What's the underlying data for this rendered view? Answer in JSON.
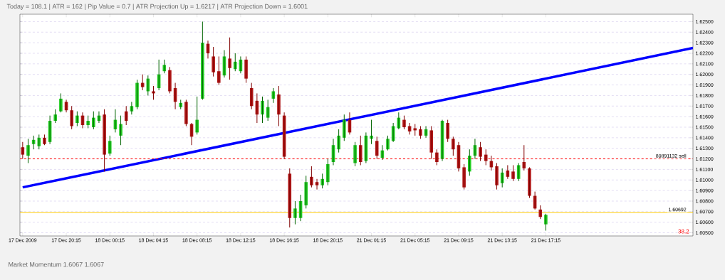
{
  "chart_data": {
    "type": "candlestick",
    "title": "Today = 108.1   |   ATR = 162   |   Pip Value = 0.7   |   ATR Projection Up = 1.6217   |   ATR Projection Down = 1.6001",
    "categories": [
      "17 Dec 2009",
      null,
      null,
      null,
      null,
      null,
      null,
      null,
      "17 Dec 20:15",
      null,
      null,
      null,
      null,
      null,
      null,
      null,
      "18 Dec 00:15",
      null,
      null,
      null,
      null,
      null,
      null,
      null,
      "18 Dec 04:15",
      null,
      null,
      null,
      null,
      null,
      null,
      null,
      "18 Dec 08:15",
      null,
      null,
      null,
      null,
      null,
      null,
      null,
      "18 Dec 12:15",
      null,
      null,
      null,
      null,
      null,
      null,
      null,
      "18 Dec 16:15",
      null,
      null,
      null,
      null,
      null,
      null,
      null,
      "18 Dec 20:15",
      null,
      null,
      null,
      null,
      null,
      null,
      null,
      "21 Dec 01:15",
      null,
      null,
      null,
      null,
      null,
      null,
      null,
      "21 Dec 05:15",
      null,
      null,
      null,
      null,
      null,
      null,
      null,
      "21 Dec 09:15",
      null,
      null,
      null,
      null,
      null,
      null,
      null,
      "21 Dec 13:15",
      null,
      null,
      null,
      null,
      null,
      null,
      null,
      "21 Dec 17:15",
      null,
      null,
      null,
      null,
      null,
      null,
      null,
      null,
      null,
      null,
      null,
      null,
      null,
      null,
      null,
      null,
      null,
      null,
      null,
      null,
      null,
      null,
      null,
      null,
      null,
      null,
      null
    ],
    "ohlc": [
      [
        1.6131,
        1.6136,
        1.612,
        1.6124
      ],
      [
        1.6123,
        1.6139,
        1.6116,
        1.6133
      ],
      [
        1.6134,
        1.6142,
        1.6129,
        1.6138
      ],
      [
        1.6132,
        1.6143,
        1.6129,
        1.614
      ],
      [
        1.614,
        1.6143,
        1.6133,
        1.6134
      ],
      [
        1.6136,
        1.6161,
        1.6134,
        1.6156
      ],
      [
        1.6156,
        1.6167,
        1.6154,
        1.6162
      ],
      [
        1.6165,
        1.6182,
        1.6164,
        1.6177
      ],
      [
        1.6174,
        1.6176,
        1.6164,
        1.6166
      ],
      [
        1.6166,
        1.617,
        1.6148,
        1.6151
      ],
      [
        1.6154,
        1.6165,
        1.6151,
        1.6161
      ],
      [
        1.6161,
        1.6164,
        1.6149,
        1.6152
      ],
      [
        1.6152,
        1.6161,
        1.6149,
        1.6156
      ],
      [
        1.615,
        1.6165,
        1.6148,
        1.6159
      ],
      [
        1.6156,
        1.6165,
        1.6154,
        1.6161
      ],
      [
        1.6162,
        1.6167,
        1.6108,
        1.6124
      ],
      [
        1.6125,
        1.6142,
        1.6123,
        1.6137
      ],
      [
        1.6148,
        1.6167,
        1.6145,
        1.6157
      ],
      [
        1.6142,
        1.6161,
        1.6133,
        1.6153
      ],
      [
        1.6165,
        1.617,
        1.6152,
        1.6156
      ],
      [
        1.6165,
        1.6174,
        1.6162,
        1.617
      ],
      [
        1.6169,
        1.6195,
        1.6167,
        1.6192
      ],
      [
        1.6192,
        1.62,
        1.6185,
        1.6188
      ],
      [
        1.6184,
        1.6199,
        1.618,
        1.6196
      ],
      [
        1.6184,
        1.6189,
        1.6176,
        1.6182
      ],
      [
        1.6187,
        1.6214,
        1.6185,
        1.62
      ],
      [
        1.6203,
        1.6214,
        1.6201,
        1.6209
      ],
      [
        1.6204,
        1.6207,
        1.6182,
        1.6184
      ],
      [
        1.6187,
        1.6192,
        1.6167,
        1.6174
      ],
      [
        1.6169,
        1.6176,
        1.6167,
        1.6173
      ],
      [
        1.6174,
        1.6176,
        1.6151,
        1.6153
      ],
      [
        1.6153,
        1.6154,
        1.6133,
        1.6141
      ],
      [
        1.6145,
        1.6179,
        1.6143,
        1.6157
      ],
      [
        1.6177,
        1.625,
        1.6176,
        1.623
      ],
      [
        1.6229,
        1.6232,
        1.6215,
        1.622
      ],
      [
        1.6217,
        1.6226,
        1.6198,
        1.6202
      ],
      [
        1.6203,
        1.6217,
        1.619,
        1.6192
      ],
      [
        1.6199,
        1.6223,
        1.6197,
        1.6217
      ],
      [
        1.6215,
        1.6235,
        1.6195,
        1.6206
      ],
      [
        1.6205,
        1.622,
        1.6203,
        1.6212
      ],
      [
        1.6203,
        1.6217,
        1.6201,
        1.6214
      ],
      [
        1.6214,
        1.6217,
        1.6192,
        1.6196
      ],
      [
        1.6187,
        1.6192,
        1.6167,
        1.617
      ],
      [
        1.6175,
        1.6182,
        1.6154,
        1.6162
      ],
      [
        1.6162,
        1.6179,
        1.6154,
        1.6175
      ],
      [
        1.6159,
        1.6176,
        1.6156,
        1.6169
      ],
      [
        1.6177,
        1.6187,
        1.6173,
        1.6184
      ],
      [
        1.6181,
        1.6189,
        1.6151,
        1.6162
      ],
      [
        1.6161,
        1.6164,
        1.612,
        1.6122
      ],
      [
        1.6106,
        1.6111,
        1.6055,
        1.6064
      ],
      [
        1.6064,
        1.608,
        1.6058,
        1.6073
      ],
      [
        1.6064,
        1.6086,
        1.6061,
        1.608
      ],
      [
        1.6076,
        1.6104,
        1.6073,
        1.6098
      ],
      [
        1.6103,
        1.6113,
        1.6093,
        1.6095
      ],
      [
        1.6098,
        1.6101,
        1.6091,
        1.6095
      ],
      [
        1.6095,
        1.6106,
        1.6092,
        1.6101
      ],
      [
        1.6098,
        1.612,
        1.6095,
        1.6115
      ],
      [
        1.6117,
        1.6139,
        1.6114,
        1.6133
      ],
      [
        1.6129,
        1.6148,
        1.6126,
        1.6142
      ],
      [
        1.614,
        1.6162,
        1.6137,
        1.6157
      ],
      [
        1.6157,
        1.6164,
        1.6143,
        1.6145
      ],
      [
        1.6116,
        1.6136,
        1.6113,
        1.6133
      ],
      [
        1.6133,
        1.6142,
        1.6114,
        1.6117
      ],
      [
        1.6118,
        1.6145,
        1.6116,
        1.6142
      ],
      [
        1.6139,
        1.6157,
        1.6134,
        1.6142
      ],
      [
        1.6137,
        1.6141,
        1.612,
        1.6123
      ],
      [
        1.6121,
        1.6133,
        1.6119,
        1.6128
      ],
      [
        1.6129,
        1.6142,
        1.6128,
        1.6139
      ],
      [
        1.6137,
        1.6154,
        1.6136,
        1.6151
      ],
      [
        1.6149,
        1.6164,
        1.6148,
        1.6159
      ],
      [
        1.6157,
        1.6161,
        1.6148,
        1.615
      ],
      [
        1.6151,
        1.6154,
        1.6143,
        1.6146
      ],
      [
        1.6149,
        1.6153,
        1.6142,
        1.6147
      ],
      [
        1.6148,
        1.6151,
        1.6139,
        1.6142
      ],
      [
        1.6142,
        1.6151,
        1.614,
        1.6148
      ],
      [
        1.6147,
        1.6151,
        1.612,
        1.6126
      ],
      [
        1.6126,
        1.6129,
        1.6114,
        1.6117
      ],
      [
        1.612,
        1.6157,
        1.6118,
        1.6156
      ],
      [
        1.6154,
        1.6157,
        1.6136,
        1.6139
      ],
      [
        1.6139,
        1.6141,
        1.6123,
        1.6129
      ],
      [
        1.6133,
        1.6136,
        1.6108,
        1.6111
      ],
      [
        1.6112,
        1.6115,
        1.6091,
        1.6093
      ],
      [
        1.6108,
        1.6129,
        1.6104,
        1.6123
      ],
      [
        1.6123,
        1.6139,
        1.612,
        1.6133
      ],
      [
        1.6131,
        1.6136,
        1.6118,
        1.6122
      ],
      [
        1.6124,
        1.6129,
        1.6114,
        1.6118
      ],
      [
        1.6118,
        1.6123,
        1.6109,
        1.6112
      ],
      [
        1.6113,
        1.6116,
        1.6091,
        1.6095
      ],
      [
        1.6097,
        1.6111,
        1.6093,
        1.6107
      ],
      [
        1.6109,
        1.6114,
        1.6101,
        1.6103
      ],
      [
        1.6108,
        1.6114,
        1.6099,
        1.6101
      ],
      [
        1.6101,
        1.6116,
        1.6099,
        1.6114
      ],
      [
        1.6117,
        1.6133,
        1.6109,
        1.6111
      ],
      [
        1.6111,
        1.6112,
        1.6083,
        1.6085
      ],
      [
        1.6085,
        1.6089,
        1.6072,
        1.6073
      ],
      [
        1.6072,
        1.6076,
        1.6063,
        1.6065
      ],
      [
        1.6058,
        1.6068,
        1.6052,
        1.6067
      ],
      null,
      null,
      null,
      null,
      null,
      null,
      null,
      null,
      null,
      null,
      null,
      null,
      null,
      null,
      null,
      null,
      null,
      null,
      null,
      null,
      null,
      null,
      null,
      null,
      null,
      null,
      null
    ],
    "series": [
      {
        "type": "line",
        "color": "#0000ff",
        "values": [
          1.6093,
          null,
          null,
          null,
          null,
          null,
          null,
          null,
          null,
          null,
          null,
          null,
          null,
          null,
          null,
          null,
          null,
          null,
          null,
          null,
          null,
          null,
          null,
          null,
          null,
          null,
          null,
          null,
          null,
          null,
          null,
          null,
          null,
          null,
          null,
          null,
          null,
          null,
          null,
          null,
          null,
          null,
          null,
          null,
          null,
          null,
          null,
          null,
          null,
          null,
          null,
          null,
          null,
          null,
          null,
          null,
          null,
          null,
          null,
          null,
          null,
          null,
          null,
          null,
          null,
          null,
          null,
          null,
          null,
          null,
          null,
          null,
          null,
          null,
          null,
          null,
          null,
          null,
          null,
          null,
          null,
          null,
          null,
          null,
          null,
          null,
          null,
          null,
          null,
          null,
          null,
          null,
          null,
          null,
          null,
          null,
          null,
          null,
          null,
          null,
          null,
          null,
          null,
          null,
          null,
          null,
          null,
          null,
          null,
          null,
          null,
          null,
          null,
          null,
          null,
          null,
          null,
          null,
          null,
          null,
          null,
          null,
          null,
          1.6225
        ]
      }
    ],
    "ref_lines": [
      {
        "axis": "y",
        "value": 1.612,
        "label": "80891132 sell",
        "color": "#ff0000",
        "line_style": "dashed"
      },
      {
        "axis": "y",
        "value": 1.60692,
        "label": "1.60692",
        "color": "#ffcc00",
        "line_style": "solid"
      }
    ],
    "annotations": [
      "38.2",
      "Market Momentum 1.6067 1.6067"
    ],
    "ylim": [
      1.6047,
      1.6257
    ],
    "yticks": [
      {
        "value": 1.605,
        "label": "1.60500"
      },
      {
        "value": 1.606,
        "label": "1.60600"
      },
      {
        "value": 1.607,
        "label": "1.60700"
      },
      {
        "value": 1.608,
        "label": "1.60800"
      },
      {
        "value": 1.609,
        "label": "1.60900"
      },
      {
        "value": 1.61,
        "label": "1.61000"
      },
      {
        "value": 1.611,
        "label": "1.61100"
      },
      {
        "value": 1.612,
        "label": "1.61200"
      },
      {
        "value": 1.613,
        "label": "1.61300"
      },
      {
        "value": 1.614,
        "label": "1.61400"
      },
      {
        "value": 1.615,
        "label": "1.61500"
      },
      {
        "value": 1.616,
        "label": "1.61600"
      },
      {
        "value": 1.617,
        "label": "1.61700"
      },
      {
        "value": 1.618,
        "label": "1.61800"
      },
      {
        "value": 1.619,
        "label": "1.61900"
      },
      {
        "value": 1.62,
        "label": "1.62000"
      },
      {
        "value": 1.621,
        "label": "1.62100"
      },
      {
        "value": 1.622,
        "label": "1.62200"
      },
      {
        "value": 1.623,
        "label": "1.62300"
      },
      {
        "value": 1.624,
        "label": "1.62400"
      },
      {
        "value": 1.625,
        "label": "1.62500"
      }
    ],
    "grid": "y"
  }
}
